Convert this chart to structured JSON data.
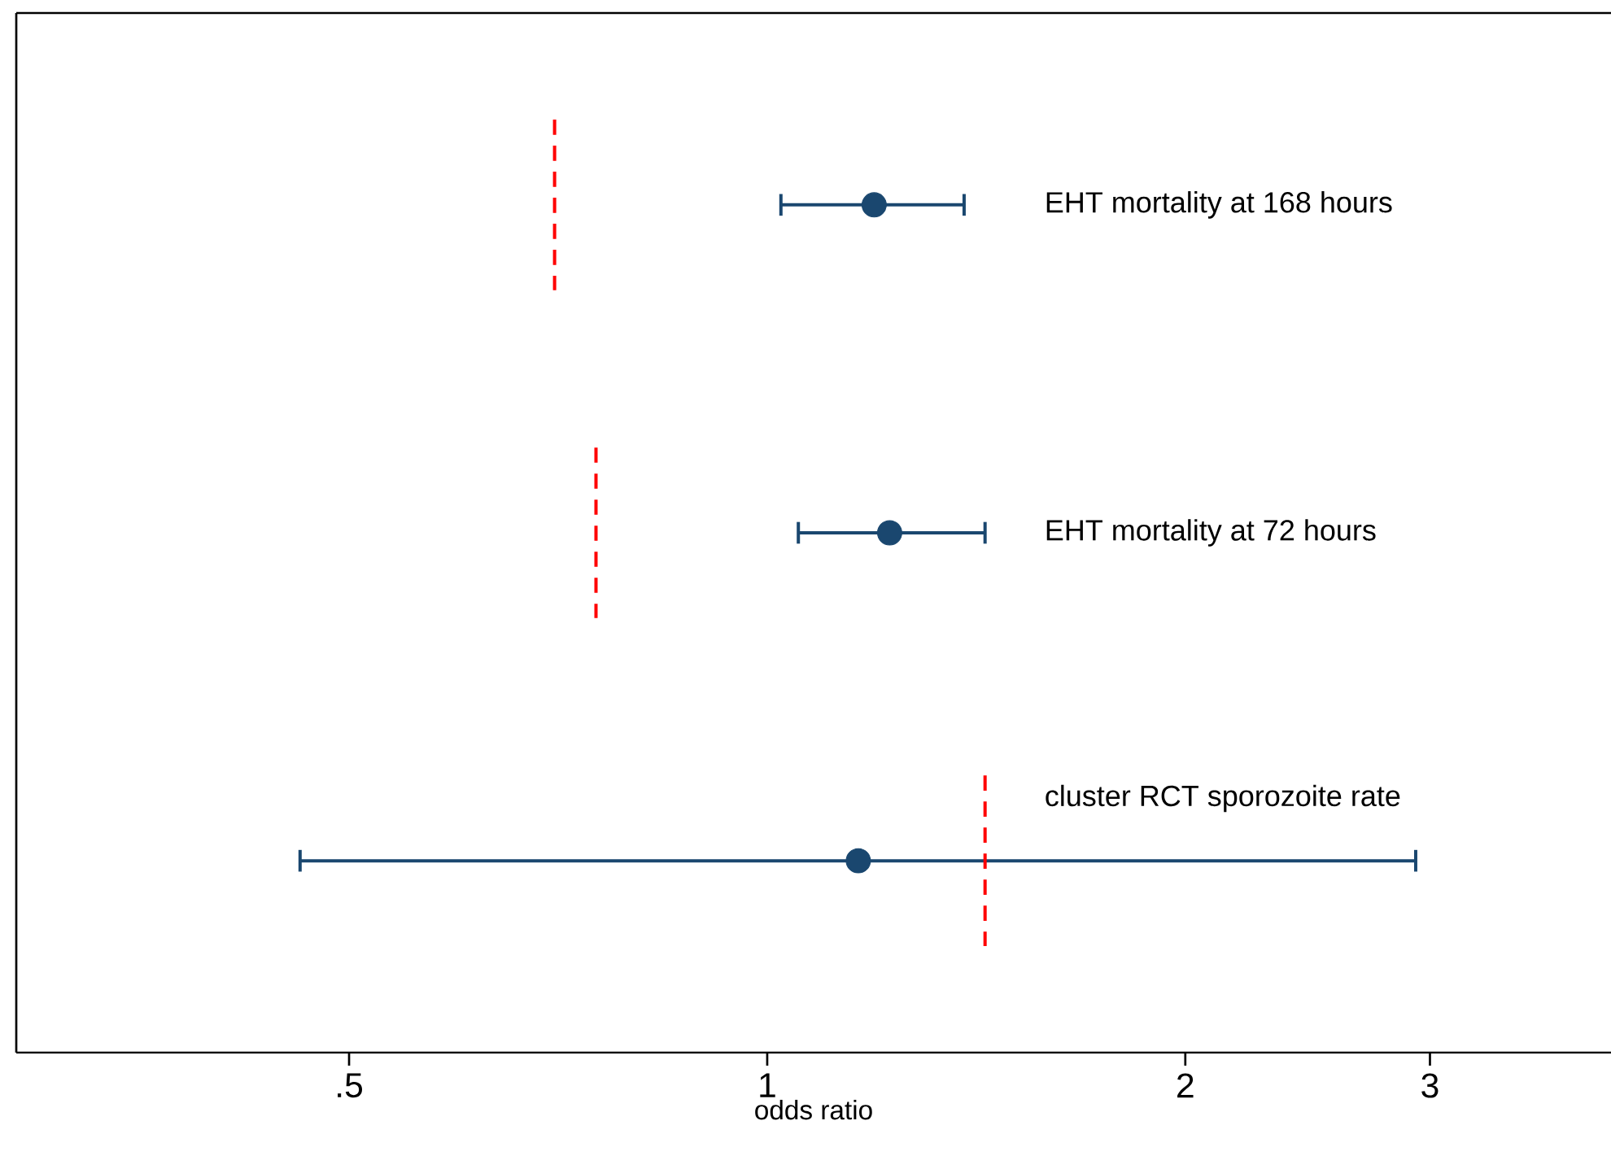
{
  "chart_data": {
    "type": "scatter",
    "orientation": "horizontal",
    "log": "x",
    "xlabel": "odds ratio",
    "categories": [
      "EHT mortality at 168 hours",
      "EHT mortality at 72 hours",
      "cluster RCT sporozoite rate"
    ],
    "xlim": [
      0.288,
      4.05
    ],
    "xticks": [
      {
        "value": 0.5,
        "label": ".5"
      },
      1,
      2,
      3
    ],
    "series": [
      {
        "color": "#1a476f",
        "values": [
          1.194,
          1.225,
          1.163
        ],
        "errors": [
          [
            1.023,
            1.386
          ],
          [
            1.053,
            1.435
          ],
          [
            0.461,
            2.93
          ]
        ]
      }
    ],
    "ref_lines": [
      {
        "axis": "x",
        "value": 0.703,
        "color": "#ff0000",
        "line_style": "dashed"
      },
      {
        "axis": "x",
        "value": 0.753,
        "color": "#ff0000",
        "line_style": "dashed"
      },
      {
        "axis": "x",
        "value": 1.435,
        "color": "#ff0000",
        "line_style": "dashed"
      }
    ]
  }
}
